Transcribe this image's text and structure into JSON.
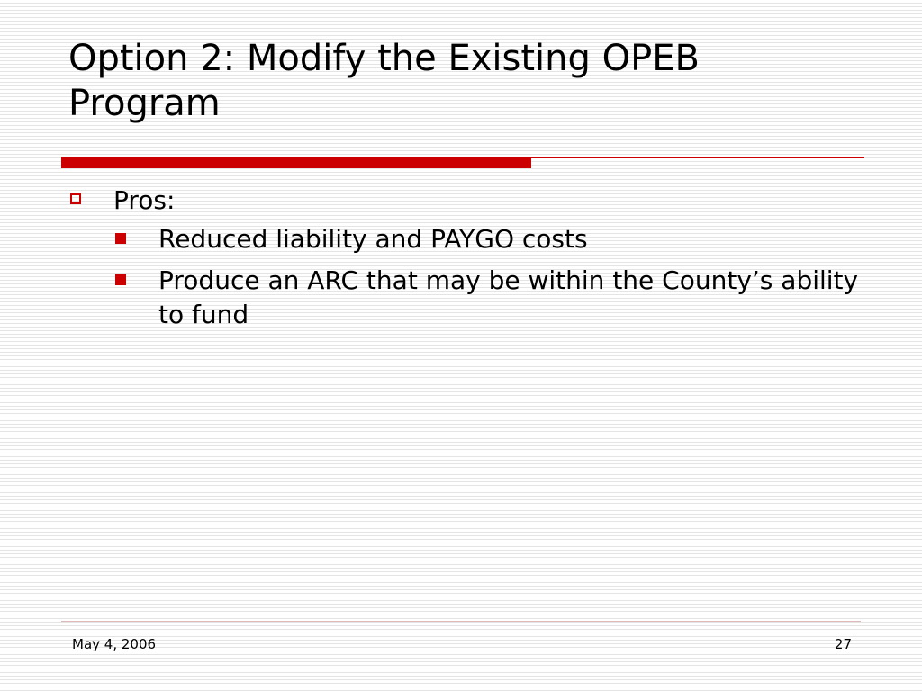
{
  "slide": {
    "title": "Option 2:  Modify the Existing OPEB Program",
    "bullets": [
      {
        "text": "Pros:",
        "sub": [
          "Reduced liability and PAYGO costs",
          "Produce an ARC that may be within the County’s ability to fund"
        ]
      }
    ]
  },
  "footer": {
    "date": "May 4, 2006",
    "page_number": "27"
  },
  "colors": {
    "accent": "#cc0000",
    "text": "#000000",
    "background": "#ffffff",
    "stripe": "#e4e4e4"
  },
  "icons": {
    "level1_bullet": "hollow-square",
    "level2_bullet": "filled-square"
  }
}
